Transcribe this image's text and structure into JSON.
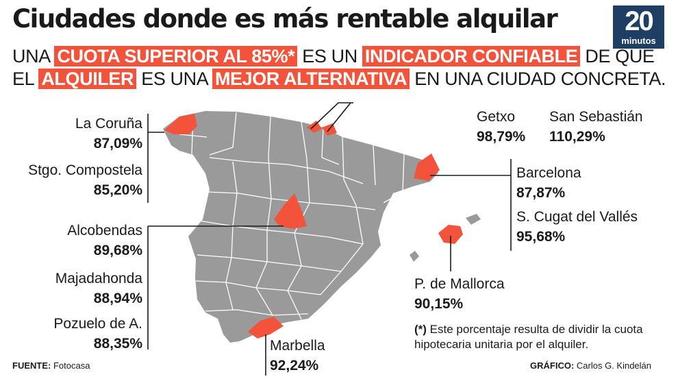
{
  "title": "Ciudades donde es más rentable alquilar",
  "logo": {
    "number": "20",
    "word": "minutos"
  },
  "subtitle": {
    "line1": [
      {
        "text": "UNA ",
        "highlight": false
      },
      {
        "text": "CUOTA SUPERIOR AL 85%*",
        "highlight": true
      },
      {
        "text": " ES UN ",
        "highlight": false
      },
      {
        "text": "INDICADOR CONFIABLE",
        "highlight": true
      },
      {
        "text": " DE QUE",
        "highlight": false
      }
    ],
    "line2": [
      {
        "text": "EL ",
        "highlight": false
      },
      {
        "text": "ALQUILER",
        "highlight": true
      },
      {
        "text": " ES UNA ",
        "highlight": false
      },
      {
        "text": "MEJOR ALTERNATIVA",
        "highlight": true
      },
      {
        "text": " EN UNA CIUDAD CONCRETA.",
        "highlight": false
      }
    ]
  },
  "cities": {
    "la_coruna": {
      "name": "La Coruña",
      "pct": "87,09%"
    },
    "santiago": {
      "name": "Stgo. Compostela",
      "pct": "85,20%"
    },
    "alcobendas": {
      "name": "Alcobendas",
      "pct": "89,68%"
    },
    "majadahonda": {
      "name": "Majadahonda",
      "pct": "88,94%"
    },
    "pozuelo": {
      "name": "Pozuelo de A.",
      "pct": "88,35%"
    },
    "marbella": {
      "name": "Marbella",
      "pct": "92,24%"
    },
    "getxo": {
      "name": "Getxo",
      "pct": "98,79%"
    },
    "san_sebastian": {
      "name": "San Sebastián",
      "pct": "110,29%"
    },
    "barcelona": {
      "name": "Barcelona",
      "pct": "87,87%"
    },
    "sant_cugat": {
      "name": "S. Cugat del Vallés",
      "pct": "95,68%"
    },
    "palma": {
      "name": "P. de Mallorca",
      "pct": "90,15%"
    }
  },
  "note": {
    "mark": "(*)",
    "text": " Este porcentaje resulta de dividir la cuota hipotecaria unitaria por el alquiler."
  },
  "source": {
    "label": "FUENTE:",
    "value": " Fotocasa"
  },
  "graphic": {
    "label": "GRÁFICO:",
    "value": " Carlos G. Kindelán"
  },
  "colors": {
    "highlight": "#f2533a",
    "province": "#9a9a9a",
    "border": "#ffffff",
    "logo_bg": "#1f3e63"
  }
}
